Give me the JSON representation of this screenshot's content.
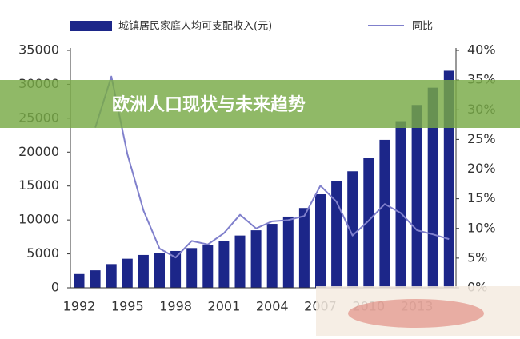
{
  "banner": {
    "title": "欧洲人口现状与未来趋势"
  },
  "chart_data": {
    "type": "bar_line",
    "categories": [
      "1992",
      null,
      null,
      "1995",
      null,
      null,
      "1998",
      null,
      null,
      "2001",
      null,
      null,
      "2004",
      null,
      null,
      "2007",
      null,
      null,
      "2010",
      null,
      null,
      "2013",
      null,
      null
    ],
    "series": [
      {
        "name": "城镇居民家庭人均可支配收入(元)",
        "type": "bar",
        "color": "#1c2689",
        "values": [
          2027,
          2577,
          3496,
          4283,
          4839,
          5160,
          5425,
          5854,
          6280,
          6860,
          7703,
          8472,
          9422,
          10493,
          11759,
          13786,
          15781,
          17175,
          19109,
          21810,
          24565,
          26955,
          29500,
          32000
        ]
      },
      {
        "name": "同比",
        "type": "line",
        "axis": "y2",
        "color": "#8080cc",
        "values": [
          null,
          27,
          35.6,
          22.5,
          13,
          6.6,
          5.1,
          7.9,
          7.3,
          9.2,
          12.3,
          10,
          11.2,
          11.4,
          12.1,
          17.2,
          14.5,
          8.8,
          11.3,
          14.1,
          12.6,
          9.7,
          9,
          8.2
        ]
      }
    ],
    "ylim": [
      0,
      35000
    ],
    "yticks": [
      0,
      5000,
      10000,
      15000,
      20000,
      25000,
      30000,
      35000
    ],
    "y2lim": [
      0,
      40
    ],
    "y2ticks": [
      {
        "value": 0,
        "label": "0%"
      },
      {
        "value": 5,
        "label": "5%"
      },
      {
        "value": 10,
        "label": "10%"
      },
      {
        "value": 15,
        "label": "15%"
      },
      {
        "value": 20,
        "label": "20%"
      },
      {
        "value": 25,
        "label": "25%"
      },
      {
        "value": 30,
        "label": "30%"
      },
      {
        "value": 35,
        "label": "35%"
      },
      {
        "value": 40,
        "label": "40%"
      }
    ],
    "legend": "top"
  }
}
